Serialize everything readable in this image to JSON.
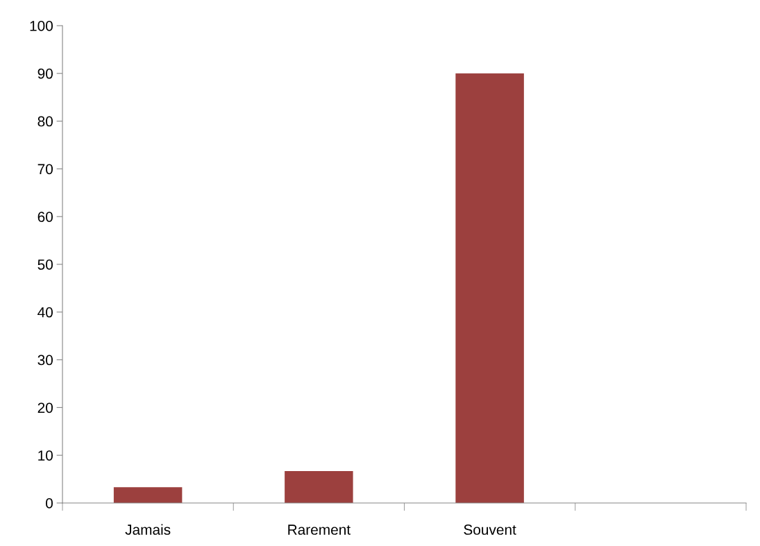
{
  "chart_data": {
    "type": "bar",
    "categories": [
      "Jamais",
      "Rarement",
      "Souvent",
      null
    ],
    "values": [
      3.3,
      6.7,
      90,
      null
    ],
    "color": "#9c403e",
    "ylim": [
      0,
      100
    ],
    "yticks": [
      0,
      10,
      20,
      30,
      40,
      50,
      60,
      70,
      80,
      90,
      100
    ],
    "grid": false,
    "legend": false
  }
}
